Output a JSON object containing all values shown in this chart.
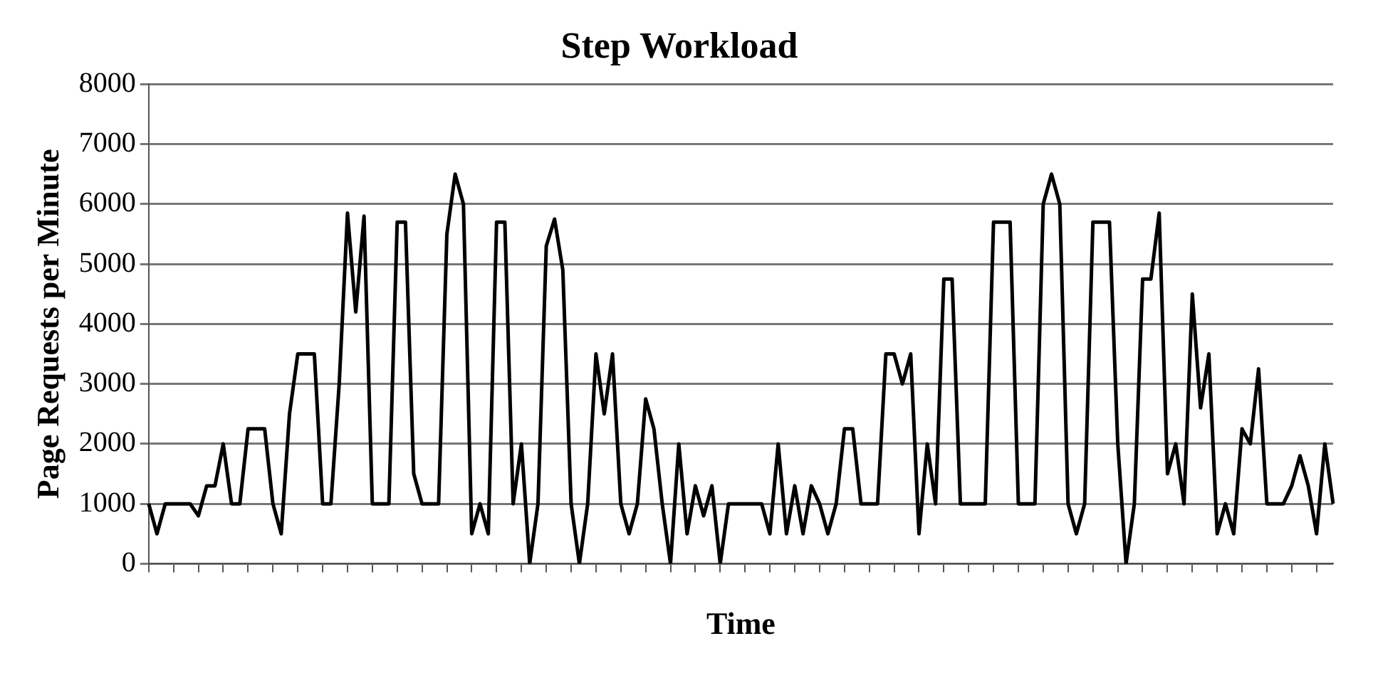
{
  "chart_data": {
    "type": "line",
    "title": "Step Workload",
    "xlabel": "Time",
    "ylabel": "Page Requests per Minute",
    "categories": [
      null,
      null,
      null,
      null,
      null,
      null,
      null,
      null,
      null,
      null,
      null,
      null,
      null,
      null,
      null,
      null,
      null,
      null,
      null,
      null,
      null,
      null,
      null,
      null,
      null,
      null,
      null,
      null,
      null,
      null,
      null,
      null,
      null,
      null,
      null,
      null,
      null,
      null,
      null,
      null,
      null,
      null,
      null,
      null,
      null,
      null,
      null,
      null,
      null,
      null,
      null,
      null,
      null,
      null,
      null,
      null,
      null,
      null,
      null,
      null,
      null,
      null,
      null,
      null,
      null,
      null,
      null,
      null,
      null,
      null,
      null,
      null,
      null,
      null,
      null,
      null,
      null,
      null,
      null,
      null,
      null,
      null,
      null,
      null,
      null,
      null,
      null,
      null,
      null,
      null,
      null,
      null,
      null,
      null,
      null,
      null,
      null,
      null,
      null,
      null,
      null,
      null,
      null,
      null,
      null,
      null,
      null,
      null,
      null,
      null,
      null,
      null,
      null,
      null,
      null,
      null,
      null,
      null,
      null,
      null,
      null,
      null,
      null,
      null,
      null,
      null,
      null,
      null,
      null,
      null,
      null,
      null,
      null,
      null,
      null,
      null,
      null,
      null,
      null,
      null,
      null,
      null,
      null,
      null
    ],
    "series": [
      {
        "color": "#000000",
        "values": [
          1000,
          500,
          1000,
          1000,
          1000,
          1000,
          800,
          1300,
          1300,
          2000,
          1000,
          1000,
          2250,
          2250,
          2250,
          1000,
          500,
          2500,
          3500,
          3500,
          3500,
          1000,
          1000,
          3000,
          5850,
          4200,
          5800,
          1000,
          1000,
          1000,
          5700,
          5700,
          1500,
          1000,
          1000,
          1000,
          5500,
          6500,
          6000,
          500,
          1000,
          500,
          5700,
          5700,
          1000,
          2000,
          0,
          1000,
          5300,
          5750,
          4900,
          1000,
          0,
          1000,
          3500,
          2500,
          3500,
          1000,
          500,
          1000,
          2750,
          2250,
          1000,
          0,
          2000,
          500,
          1300,
          800,
          1300,
          0,
          1000,
          1000,
          1000,
          1000,
          1000,
          500,
          2000,
          500,
          1300,
          500,
          1300,
          1000,
          500,
          1000,
          2250,
          2250,
          1000,
          1000,
          1000,
          3500,
          3500,
          3000,
          3500,
          500,
          2000,
          1000,
          4750,
          4750,
          1000,
          1000,
          1000,
          1000,
          5700,
          5700,
          5700,
          1000,
          1000,
          1000,
          6000,
          6500,
          6000,
          1000,
          500,
          1000,
          5700,
          5700,
          5700,
          2000,
          0,
          1000,
          4750,
          4750,
          5850,
          1500,
          2000,
          1000,
          4500,
          2600,
          3500,
          500,
          1000,
          500,
          2250,
          2000,
          3250,
          1000,
          1000,
          1000,
          1300,
          1800,
          1300,
          500,
          2000,
          1000
        ]
      }
    ],
    "ylim": [
      0,
      8000
    ],
    "yticks": [
      0,
      1000,
      2000,
      3000,
      4000,
      5000,
      6000,
      7000,
      8000
    ],
    "grid": "y",
    "legend": false,
    "marker": "none",
    "line_style": "solid"
  }
}
